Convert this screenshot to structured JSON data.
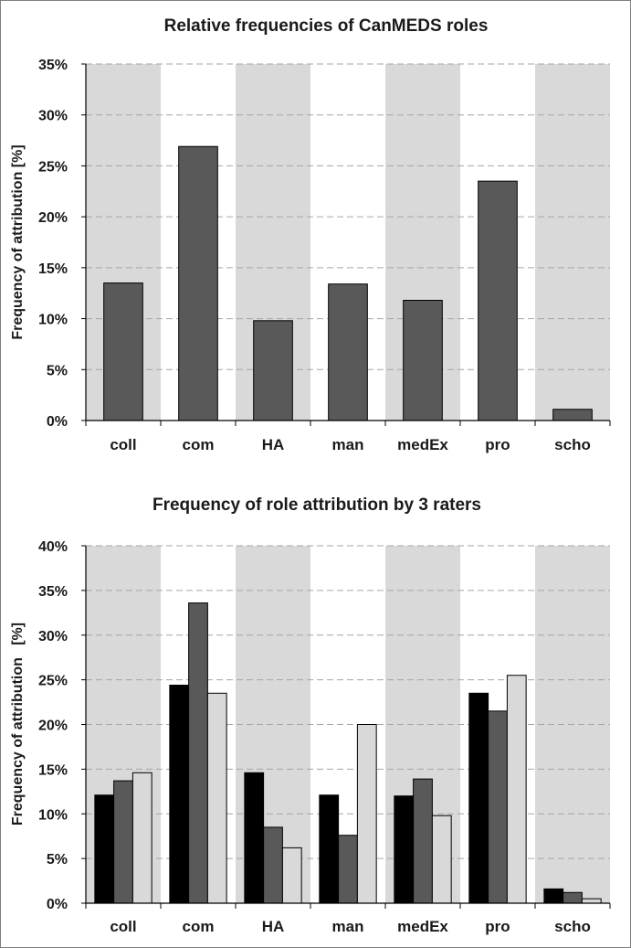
{
  "chart_data": [
    {
      "type": "bar",
      "title": "Relative frequencies of CanMEDS roles",
      "ylabel": "Frequency of attribution [%]",
      "xlabel": "",
      "categories": [
        "coll",
        "com",
        "HA",
        "man",
        "medEx",
        "pro",
        "scho"
      ],
      "ylim": [
        0,
        35
      ],
      "yticks": [
        "0%",
        "5%",
        "10%",
        "15%",
        "20%",
        "25%",
        "30%",
        "35%"
      ],
      "ytick_values": [
        0,
        5,
        10,
        15,
        20,
        25,
        30,
        35
      ],
      "grid": true,
      "series": [
        {
          "values": [
            13.5,
            26.9,
            9.8,
            13.4,
            11.8,
            23.5,
            1.1
          ],
          "color": "#595959"
        }
      ]
    },
    {
      "type": "bar",
      "title": "Frequency of role attribution by 3 raters",
      "ylabel": "Frequency of attribution   [%]",
      "xlabel": "",
      "categories": [
        "coll",
        "com",
        "HA",
        "man",
        "medEx",
        "pro",
        "scho"
      ],
      "ylim": [
        0,
        40
      ],
      "yticks": [
        "0%",
        "5%",
        "10%",
        "15%",
        "20%",
        "25%",
        "30%",
        "35%",
        "40%"
      ],
      "ytick_values": [
        0,
        5,
        10,
        15,
        20,
        25,
        30,
        35,
        40
      ],
      "grid": true,
      "series": [
        {
          "values": [
            12.1,
            24.4,
            14.6,
            12.1,
            12.0,
            23.5,
            1.6
          ],
          "color": "#000000"
        },
        {
          "values": [
            13.7,
            33.6,
            8.5,
            7.6,
            13.9,
            21.5,
            1.2
          ],
          "color": "#595959"
        },
        {
          "values": [
            14.6,
            23.5,
            6.2,
            20.0,
            9.8,
            25.5,
            0.5
          ],
          "color": "#d9d9d9"
        }
      ]
    }
  ]
}
